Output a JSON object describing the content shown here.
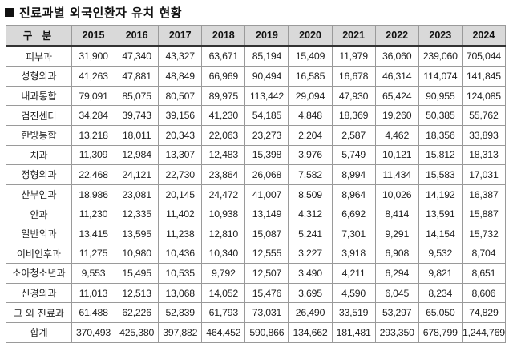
{
  "title": "진료과별 외국인환자 유치 현황",
  "table": {
    "corner_label": "구 분",
    "years": [
      "2015",
      "2016",
      "2017",
      "2018",
      "2019",
      "2020",
      "2021",
      "2022",
      "2023",
      "2024"
    ],
    "rows": [
      {
        "label": "피부과",
        "values": [
          "31,900",
          "47,340",
          "43,327",
          "63,671",
          "85,194",
          "15,409",
          "11,979",
          "36,060",
          "239,060",
          "705,044"
        ]
      },
      {
        "label": "성형외과",
        "values": [
          "41,263",
          "47,881",
          "48,849",
          "66,969",
          "90,494",
          "16,585",
          "16,678",
          "46,314",
          "114,074",
          "141,845"
        ]
      },
      {
        "label": "내과통합",
        "values": [
          "79,091",
          "85,075",
          "80,507",
          "89,975",
          "113,442",
          "29,094",
          "47,930",
          "65,424",
          "90,955",
          "124,085"
        ]
      },
      {
        "label": "검진센터",
        "values": [
          "34,284",
          "39,743",
          "39,156",
          "41,230",
          "54,185",
          "4,848",
          "18,369",
          "19,260",
          "50,385",
          "55,762"
        ]
      },
      {
        "label": "한방통합",
        "values": [
          "13,218",
          "18,011",
          "20,343",
          "22,063",
          "23,273",
          "2,204",
          "2,587",
          "4,462",
          "18,356",
          "33,893"
        ]
      },
      {
        "label": "치과",
        "values": [
          "11,309",
          "12,984",
          "13,307",
          "12,483",
          "15,398",
          "3,976",
          "5,749",
          "10,121",
          "15,812",
          "18,313"
        ]
      },
      {
        "label": "정형외과",
        "values": [
          "22,468",
          "24,121",
          "22,730",
          "23,864",
          "26,068",
          "7,582",
          "8,994",
          "11,434",
          "15,583",
          "17,031"
        ]
      },
      {
        "label": "산부인과",
        "values": [
          "18,986",
          "23,081",
          "20,145",
          "24,472",
          "41,007",
          "8,509",
          "8,964",
          "10,026",
          "14,192",
          "16,387"
        ]
      },
      {
        "label": "안과",
        "values": [
          "11,230",
          "12,335",
          "11,402",
          "10,938",
          "13,149",
          "4,312",
          "6,692",
          "8,414",
          "13,591",
          "15,887"
        ]
      },
      {
        "label": "일반외과",
        "values": [
          "13,415",
          "13,595",
          "11,238",
          "12,810",
          "15,087",
          "5,241",
          "7,301",
          "9,291",
          "14,154",
          "15,732"
        ]
      },
      {
        "label": "이비인후과",
        "values": [
          "11,275",
          "10,980",
          "10,436",
          "10,340",
          "12,555",
          "3,227",
          "3,918",
          "6,908",
          "9,532",
          "8,704"
        ]
      },
      {
        "label": "소아청소년과",
        "values": [
          "9,553",
          "15,495",
          "10,535",
          "9,792",
          "12,507",
          "3,490",
          "4,211",
          "6,294",
          "9,821",
          "8,651"
        ]
      },
      {
        "label": "신경외과",
        "values": [
          "11,013",
          "12,513",
          "13,068",
          "14,052",
          "15,476",
          "3,695",
          "4,590",
          "6,045",
          "8,234",
          "8,606"
        ]
      },
      {
        "label": "그 외 진료과",
        "values": [
          "61,488",
          "62,226",
          "52,839",
          "61,793",
          "73,031",
          "26,490",
          "33,519",
          "53,297",
          "65,050",
          "74,829"
        ]
      },
      {
        "label": "합계",
        "values": [
          "370,493",
          "425,380",
          "397,882",
          "464,452",
          "590,866",
          "134,662",
          "181,481",
          "293,350",
          "678,799",
          "1,244,769"
        ]
      }
    ]
  }
}
